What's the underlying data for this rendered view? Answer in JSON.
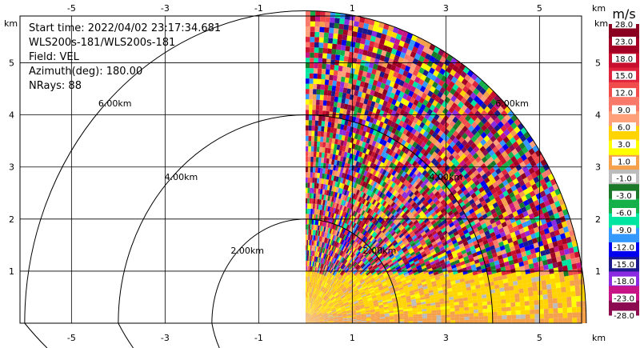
{
  "chart_data": {
    "type": "heatmap",
    "subtype": "radar-ppi",
    "info_lines": [
      "Start time: 2022/04/02 23:17:34.681",
      "WLS200s-181/WLS200s-181",
      "Field: VEL",
      "Azimuth(deg): 180.00",
      "NRays: 88"
    ],
    "x_unit": "km",
    "y_unit": "km",
    "xlim": [
      -6.1,
      5.9
    ],
    "ylim": [
      0,
      5.9
    ],
    "x_ticks": [
      -5,
      -3,
      -1,
      1,
      3,
      5
    ],
    "y_ticks": [
      1,
      2,
      3,
      4,
      5
    ],
    "grid": true,
    "range_rings": [
      {
        "label": "2.00km",
        "radius_km": 2
      },
      {
        "label": "4.00km",
        "radius_km": 4
      },
      {
        "label": "6.00km",
        "radius_km": 6
      }
    ],
    "colorbar": {
      "unit": "m/s",
      "levels": [
        "28.0",
        "23.0",
        "18.0",
        "15.0",
        "12.0",
        "9.0",
        "6.0",
        "3.0",
        "1.0",
        "-1.0",
        "-3.0",
        "-6.0",
        "-9.0",
        "-12.0",
        "-15.0",
        "-18.0",
        "-23.0",
        "-28.0"
      ],
      "colors": [
        "#8b0021",
        "#a40025",
        "#c8102e",
        "#e0233d",
        "#f24b4b",
        "#f8796a",
        "#ffa07a",
        "#ffd400",
        "#ffff00",
        "#f5a04a",
        "#bcbcbc",
        "#1a7a2a",
        "#16b04a",
        "#00e6a0",
        "#3399ff",
        "#0000ee",
        "#1a1a8c",
        "#8a2be2",
        "#c71585",
        "#8b0a50"
      ]
    },
    "velocity_field": {
      "near_ground_band_km": [
        0,
        1.0
      ],
      "near_ground_dominant_ms": [
        1.0,
        3.0
      ],
      "upper_sector": "noisy, mixed values across full colour range",
      "sector_azimuth_deg": [
        0,
        90
      ]
    }
  }
}
